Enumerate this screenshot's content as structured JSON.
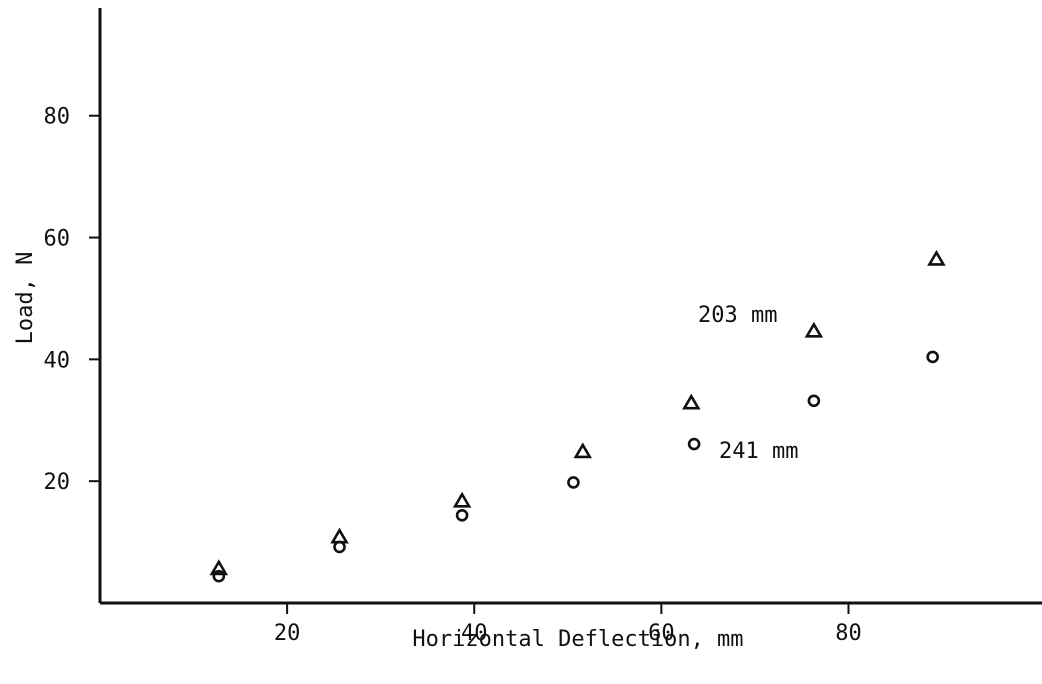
{
  "chart_data": {
    "type": "scatter",
    "title": "",
    "xlabel": "Horizontal Deflection, mm",
    "ylabel": "Load, N",
    "xlim": [
      0,
      100
    ],
    "ylim": [
      0,
      100
    ],
    "x_ticks": [
      20,
      40,
      60,
      80
    ],
    "y_ticks": [
      20,
      40,
      60,
      80
    ],
    "grid": false,
    "series": [
      {
        "marker": "triangle",
        "points": [
          {
            "x": 12.7,
            "y": 5.6
          },
          {
            "x": 25.6,
            "y": 10.8
          },
          {
            "x": 38.7,
            "y": 16.7
          },
          {
            "x": 51.6,
            "y": 24.8
          },
          {
            "x": 63.2,
            "y": 32.8
          },
          {
            "x": 76.3,
            "y": 44.6
          },
          {
            "x": 89.4,
            "y": 56.4
          }
        ]
      },
      {
        "marker": "circle",
        "points": [
          {
            "x": 12.7,
            "y": 4.4
          },
          {
            "x": 25.6,
            "y": 9.2
          },
          {
            "x": 38.7,
            "y": 14.4
          },
          {
            "x": 50.6,
            "y": 19.8
          },
          {
            "x": 63.5,
            "y": 26.1
          },
          {
            "x": 76.3,
            "y": 33.2
          },
          {
            "x": 89.0,
            "y": 40.4
          }
        ]
      }
    ],
    "annotations": [
      {
        "text": "203 mm",
        "series_index": 0
      },
      {
        "text": "241 mm",
        "series_index": 1
      }
    ]
  }
}
